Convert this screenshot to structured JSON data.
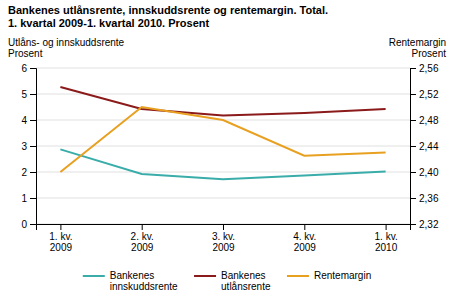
{
  "chart_data": {
    "type": "line",
    "title": "Bankenes utlånsrente, innskuddsrente og rentemargin. Total.",
    "subtitle": "1. kvartal 2009-1. kvartal 2010. Prosent",
    "categories": [
      "1. kv.\n2009",
      "2. kv.\n2009",
      "3. kv.\n2009",
      "4. kv.\n2009",
      "1. kv.\n2010"
    ],
    "series": [
      {
        "name": "Bankenes\ninnskuddsrente",
        "color": "#3aadaa",
        "values": [
          2.87,
          1.92,
          1.72,
          1.87,
          2.02
        ]
      },
      {
        "name": "Bankenes\nutlånsrente",
        "color": "#8b1a1a",
        "values": [
          5.27,
          4.42,
          4.17,
          4.27,
          4.42
        ]
      },
      {
        "name": "Rentemargin",
        "color": "#e8a020",
        "axis": "y2",
        "values": [
          2.4,
          2.5,
          2.48,
          2.425,
          2.43
        ]
      }
    ],
    "ylabel": [
      "Utlåns- og innskuddsrente",
      "Prosent"
    ],
    "y2label": [
      "Rentemargin",
      "Prosent"
    ],
    "ylim": [
      0,
      6
    ],
    "yticks": [
      0,
      1,
      2,
      3,
      4,
      5,
      6
    ],
    "y2lim": [
      2.32,
      2.56
    ],
    "y2ticks": [
      {
        "value": 2.32,
        "label": "2,32"
      },
      {
        "value": 2.36,
        "label": "2,36"
      },
      {
        "value": 2.4,
        "label": "2,40"
      },
      {
        "value": 2.44,
        "label": "2,44"
      },
      {
        "value": 2.48,
        "label": "2,48"
      },
      {
        "value": 2.52,
        "label": "2,52"
      },
      {
        "value": 2.56,
        "label": "2,56"
      }
    ],
    "grid": true,
    "legend": "bottom"
  }
}
